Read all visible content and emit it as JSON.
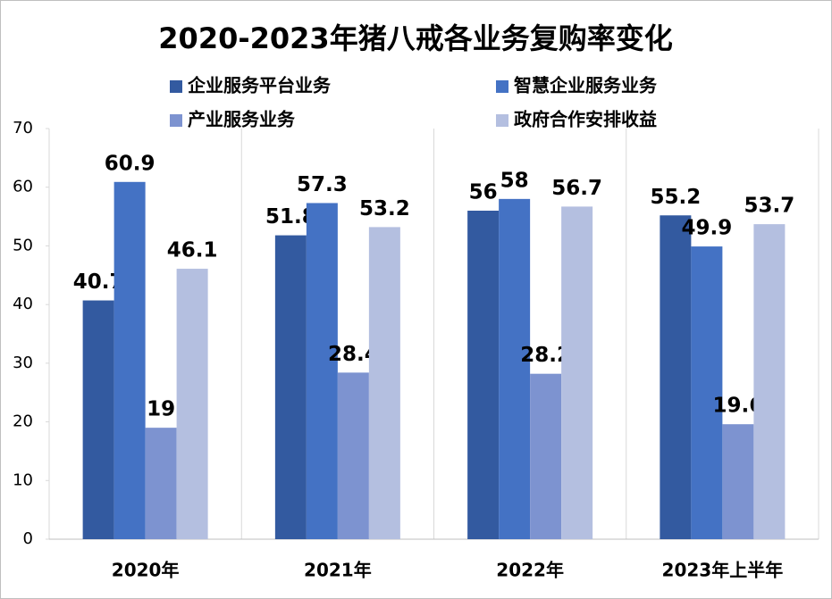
{
  "chart_data": {
    "type": "bar",
    "title": "2020-2023年猪八戒各业务复购率变化",
    "categories": [
      "2020年",
      "2021年",
      "2022年",
      "2023年上半年"
    ],
    "series": [
      {
        "name": "企业服务平台业务",
        "color": "#335aa0",
        "values": [
          40.7,
          51.8,
          56,
          55.2
        ]
      },
      {
        "name": "智慧企业服务业务",
        "color": "#4472c4",
        "values": [
          60.9,
          57.3,
          58,
          49.9
        ]
      },
      {
        "name": "产业服务业务",
        "color": "#7d93d0",
        "values": [
          19,
          28.4,
          28.2,
          19.6
        ]
      },
      {
        "name": "政府合作安排收益",
        "color": "#b4bfe0",
        "values": [
          46.1,
          53.2,
          56.7,
          53.7
        ]
      }
    ],
    "ylim": [
      0,
      70
    ],
    "yticks": [
      0,
      10,
      20,
      30,
      40,
      50,
      60,
      70
    ],
    "legend": "top"
  }
}
